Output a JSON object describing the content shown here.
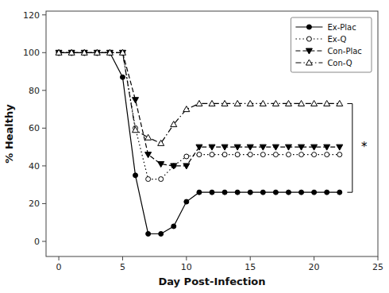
{
  "chart_data": {
    "type": "line",
    "title": "",
    "xlabel": "Day Post-Infection",
    "ylabel": "% Healthy",
    "x": [
      0,
      1,
      2,
      3,
      4,
      5,
      6,
      7,
      8,
      9,
      10,
      11,
      12,
      13,
      14,
      15,
      16,
      17,
      18,
      19,
      20,
      21,
      22
    ],
    "series": [
      {
        "name": "Ex-Plac",
        "color": "#000000",
        "marker": "circle",
        "line_style": "solid",
        "values": [
          100,
          100,
          100,
          100,
          100,
          87,
          35,
          4,
          4,
          8,
          21,
          26,
          26,
          26,
          26,
          26,
          26,
          26,
          26,
          26,
          26,
          26,
          26
        ]
      },
      {
        "name": "Ex-Q",
        "color": "#000000",
        "marker": "circle-open",
        "line_style": "dotted",
        "values": [
          100,
          100,
          100,
          100,
          100,
          100,
          60,
          33,
          33,
          40,
          45,
          46,
          46,
          46,
          46,
          46,
          46,
          46,
          46,
          46,
          46,
          46,
          46
        ]
      },
      {
        "name": "Con-Plac",
        "color": "#000000",
        "marker": "triangle-down",
        "line_style": "dashed",
        "values": [
          100,
          100,
          100,
          100,
          100,
          100,
          75,
          46,
          41,
          40,
          40,
          50,
          50,
          50,
          50,
          50,
          50,
          50,
          50,
          50,
          50,
          50,
          50
        ]
      },
      {
        "name": "Con-Q",
        "color": "#000000",
        "marker": "triangle-up-open",
        "line_style": "dashdot",
        "values": [
          100,
          100,
          100,
          100,
          100,
          100,
          59,
          55,
          52,
          62,
          70,
          73,
          73,
          73,
          73,
          73,
          73,
          73,
          73,
          73,
          73,
          73,
          73
        ]
      }
    ],
    "annotations": [
      {
        "text": "*",
        "x": 23.7,
        "y": 50,
        "bracket": {
          "x": 23,
          "y1": 26,
          "y2": 73
        }
      }
    ],
    "xlim": [
      -1,
      25
    ],
    "ylim": [
      -8,
      122
    ],
    "xticks": [
      0,
      5,
      10,
      15,
      20,
      25
    ],
    "yticks": [
      0,
      20,
      40,
      60,
      80,
      100,
      120
    ],
    "grid": false,
    "legend": "upper-right"
  }
}
